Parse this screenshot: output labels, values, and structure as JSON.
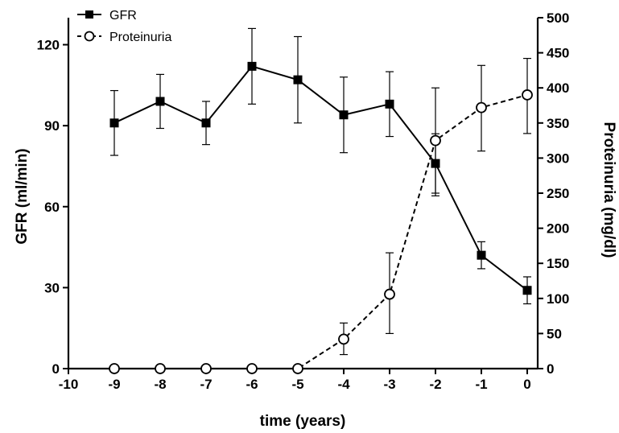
{
  "chart_data": {
    "type": "line",
    "xlabel": "time (years)",
    "ylabel_left": "GFR (ml/min)",
    "ylabel_right": "Proteinuria (mg/dl)",
    "xlim": [
      -10,
      0
    ],
    "ylim_left": [
      0,
      130
    ],
    "ylim_right": [
      0,
      500
    ],
    "x_ticks": [
      "-10",
      "-9",
      "-8",
      "-7",
      "-6",
      "-5",
      "-4",
      "-3",
      "-2",
      "-1",
      "0"
    ],
    "y_left_ticks": [
      "0",
      "30",
      "60",
      "90",
      "120"
    ],
    "y_right_ticks": [
      "0",
      "50",
      "100",
      "150",
      "200",
      "250",
      "300",
      "350",
      "400",
      "450",
      "500"
    ],
    "grid": false,
    "legend_position": "top-left",
    "series": [
      {
        "name": "GFR",
        "axis": "left",
        "marker": "filled-square",
        "line_style": "solid",
        "color": "#000000",
        "x": [
          -9,
          -8,
          -7,
          -6,
          -5,
          -4,
          -3,
          -2,
          -1,
          0
        ],
        "y": [
          91,
          99,
          91,
          112,
          107,
          94,
          98,
          76,
          42,
          29
        ],
        "err_low": [
          79,
          89,
          83,
          98,
          91,
          80,
          86,
          64,
          37,
          24
        ],
        "err_high": [
          103,
          109,
          99,
          126,
          123,
          108,
          110,
          87,
          47,
          34
        ]
      },
      {
        "name": "Proteinuria",
        "axis": "right",
        "marker": "open-circle",
        "line_style": "dashed",
        "color": "#000000",
        "x": [
          -9,
          -8,
          -7,
          -6,
          -5,
          -4,
          -3,
          -2,
          -1,
          0
        ],
        "y": [
          0,
          0,
          0,
          0,
          0,
          42,
          106,
          325,
          372,
          390
        ],
        "err_low": [
          null,
          null,
          null,
          null,
          null,
          20,
          50,
          250,
          310,
          335
        ],
        "err_high": [
          null,
          null,
          null,
          null,
          null,
          65,
          165,
          400,
          432,
          442
        ]
      }
    ]
  }
}
